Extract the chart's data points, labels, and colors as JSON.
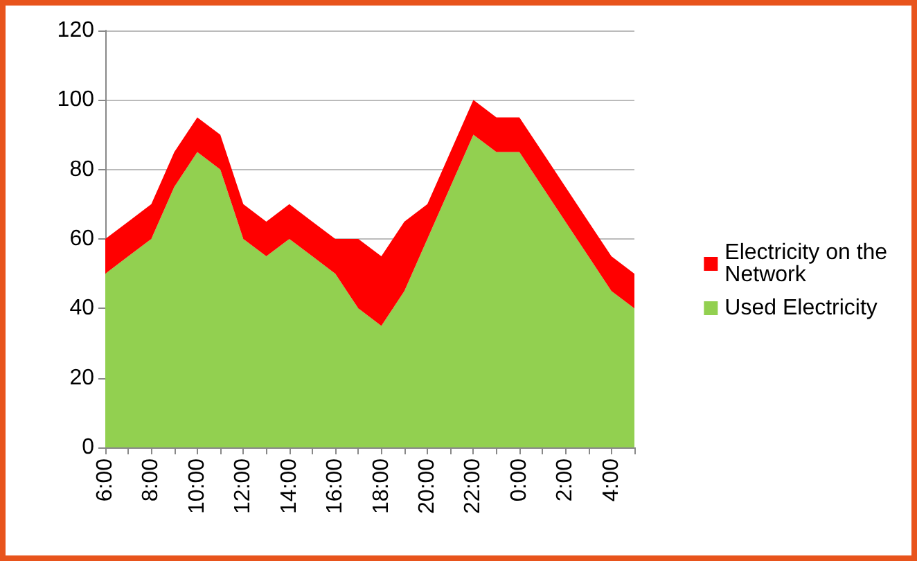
{
  "chart_data": {
    "type": "area",
    "stacked": true,
    "categories": [
      "6:00",
      null,
      "8:00",
      null,
      "10:00",
      null,
      "12:00",
      null,
      "14:00",
      null,
      "16:00",
      null,
      "18:00",
      null,
      "20:00",
      null,
      "22:00",
      null,
      "0:00",
      null,
      "2:00",
      null,
      "4:00",
      null
    ],
    "series": [
      {
        "name": "Used Electricity",
        "color": "#92d050",
        "values": [
          50,
          55,
          60,
          75,
          85,
          80,
          60,
          55,
          60,
          55,
          50,
          40,
          35,
          45,
          60,
          75,
          90,
          85,
          85,
          75,
          65,
          55,
          45,
          40
        ]
      },
      {
        "name": "Electricity on the Network",
        "color": "#ff0000",
        "values": [
          10,
          10,
          10,
          10,
          10,
          10,
          10,
          10,
          10,
          10,
          10,
          20,
          20,
          20,
          10,
          10,
          10,
          10,
          10,
          10,
          10,
          10,
          10,
          10
        ]
      }
    ],
    "ylim": [
      0,
      120
    ],
    "yticks": [
      0,
      20,
      40,
      60,
      80,
      100,
      120
    ],
    "grid": "y",
    "legend": "right"
  }
}
